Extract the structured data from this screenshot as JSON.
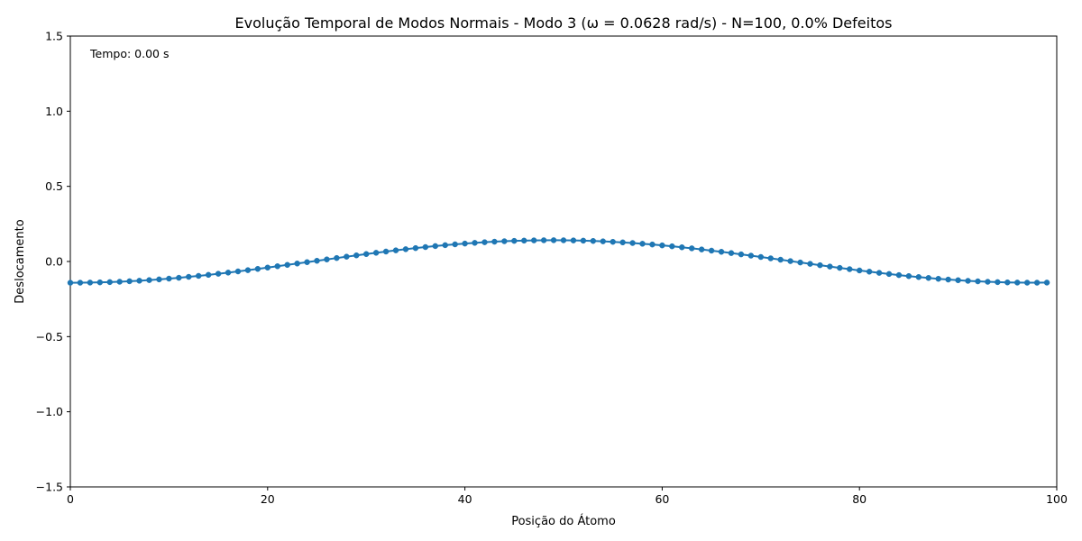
{
  "chart_data": {
    "type": "line",
    "title": "Evolução Temporal de Modos Normais - Modo 3 (ω = 0.0628 rad/s) - N=100, 0.0% Defeitos",
    "xlabel": "Posição do Átomo",
    "ylabel": "Deslocamento",
    "xlim": [
      0,
      100
    ],
    "ylim": [
      -1.5,
      1.5
    ],
    "x_ticks": [
      0,
      20,
      40,
      60,
      80,
      100
    ],
    "x_tick_labels": [
      "0",
      "20",
      "40",
      "60",
      "80",
      "100"
    ],
    "y_ticks": [
      -1.5,
      -1.0,
      -0.5,
      0.0,
      0.5,
      1.0,
      1.5
    ],
    "y_tick_labels": [
      "−1.5",
      "−1.0",
      "−0.5",
      "0.0",
      "0.5",
      "1.0",
      "1.5"
    ],
    "grid": false,
    "legend": "none",
    "annotation": "Tempo: 0.00 s",
    "series": [
      {
        "color": "#1f77b4",
        "marker": "circle",
        "x": [
          0,
          1,
          2,
          3,
          4,
          5,
          6,
          7,
          8,
          9,
          10,
          11,
          12,
          13,
          14,
          15,
          16,
          17,
          18,
          19,
          20,
          21,
          22,
          23,
          24,
          25,
          26,
          27,
          28,
          29,
          30,
          31,
          32,
          33,
          34,
          35,
          36,
          37,
          38,
          39,
          40,
          41,
          42,
          43,
          44,
          45,
          46,
          47,
          48,
          49,
          50,
          51,
          52,
          53,
          54,
          55,
          56,
          57,
          58,
          59,
          60,
          61,
          62,
          63,
          64,
          65,
          66,
          67,
          68,
          69,
          70,
          71,
          72,
          73,
          74,
          75,
          76,
          77,
          78,
          79,
          80,
          81,
          82,
          83,
          84,
          85,
          86,
          87,
          88,
          89,
          90,
          91,
          92,
          93,
          94,
          95,
          96,
          97,
          98,
          99
        ],
        "values": [
          -0.1414,
          -0.1413,
          -0.1405,
          -0.1391,
          -0.1372,
          -0.1347,
          -0.1316,
          -0.128,
          -0.1239,
          -0.1192,
          -0.114,
          -0.1084,
          -0.1023,
          -0.0958,
          -0.0889,
          -0.0816,
          -0.074,
          -0.066,
          -0.0578,
          -0.0493,
          -0.0406,
          -0.0318,
          -0.0228,
          -0.0137,
          -0.0045,
          0.0047,
          0.0138,
          0.0229,
          0.0319,
          0.0407,
          0.0494,
          0.0579,
          0.0661,
          0.0741,
          0.0817,
          0.089,
          0.0959,
          0.1024,
          0.1085,
          0.1141,
          0.1193,
          0.124,
          0.1281,
          0.1317,
          0.1347,
          0.1372,
          0.1391,
          0.1405,
          0.1413,
          0.1414,
          0.1411,
          0.1401,
          0.1386,
          0.1366,
          0.134,
          0.1308,
          0.1271,
          0.1228,
          0.1181,
          0.1129,
          0.1071,
          0.101,
          0.0944,
          0.0874,
          0.08,
          0.0723,
          0.0643,
          0.056,
          0.0475,
          0.0388,
          0.0299,
          0.0209,
          0.0118,
          0.0026,
          -0.0066,
          -0.0157,
          -0.0248,
          -0.0338,
          -0.0426,
          -0.0512,
          -0.0597,
          -0.0678,
          -0.0757,
          -0.0833,
          -0.0905,
          -0.0973,
          -0.1037,
          -0.1097,
          -0.1152,
          -0.1203,
          -0.1248,
          -0.1288,
          -0.1322,
          -0.1351,
          -0.1374,
          -0.1392,
          -0.1404,
          -0.141,
          -0.1411,
          -0.1405
        ]
      }
    ]
  }
}
